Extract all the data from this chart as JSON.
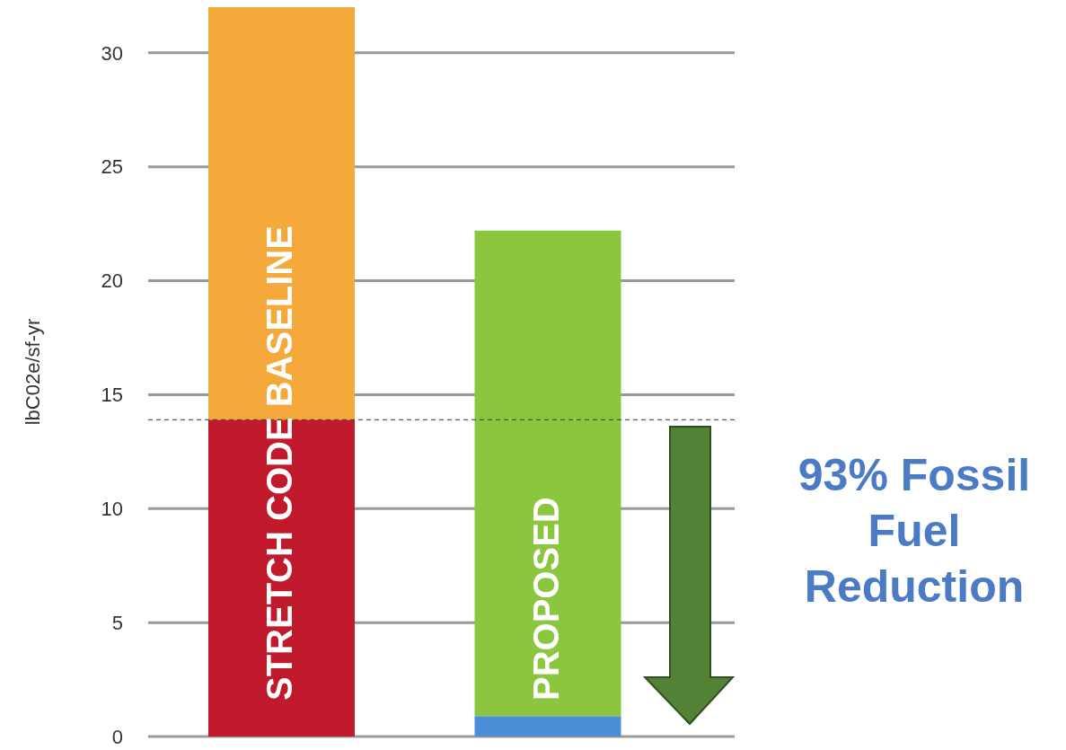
{
  "chart_data": {
    "type": "bar",
    "stacked": true,
    "categories": [
      "STRETCH CODE BASELINE",
      "PROPOSED"
    ],
    "series": [
      {
        "colors": [
          "#c01a2c",
          "#4a8fd8"
        ],
        "values": [
          13.9,
          0.9
        ]
      },
      {
        "colors": [
          "#f5a93a",
          "#8cc63f"
        ],
        "values": [
          18.1,
          21.3
        ]
      }
    ],
    "ylabel": "lbC02e/sf-yr",
    "ylim": [
      0,
      32
    ],
    "yticks": [
      0,
      5,
      10,
      15,
      20,
      25,
      30
    ],
    "grid": "y",
    "ref_lines": [
      {
        "axis": "y",
        "value": 13.9,
        "color": "#333333",
        "line_style": "dashed"
      }
    ],
    "annotations": [
      "93% Fossil Fuel Reduction"
    ]
  }
}
